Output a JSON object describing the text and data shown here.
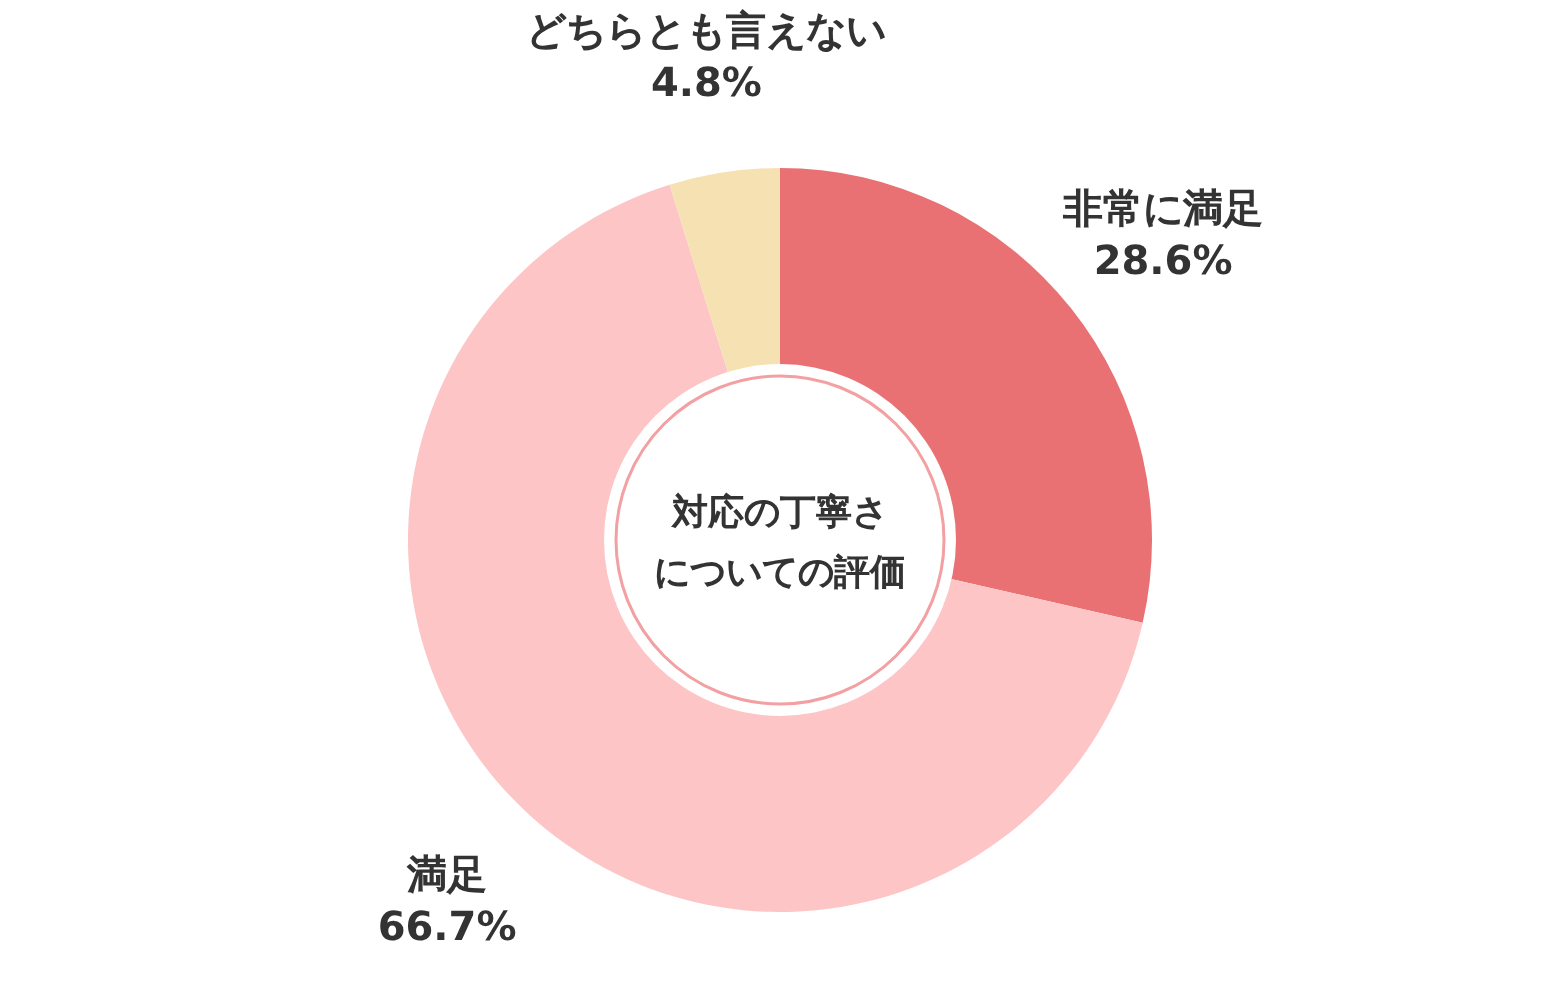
{
  "chart_data": {
    "type": "donut",
    "title": "対応の丁寧さについての評価",
    "categories": [
      "非常に満足",
      "満足",
      "どちらとも言えない"
    ],
    "values": [
      28.6,
      66.7,
      4.8
    ],
    "colors": [
      "#e97073",
      "#fdc5c6",
      "#f5e1b2"
    ],
    "value_labels": [
      "28.6%",
      "66.7%",
      "4.8%"
    ]
  }
}
